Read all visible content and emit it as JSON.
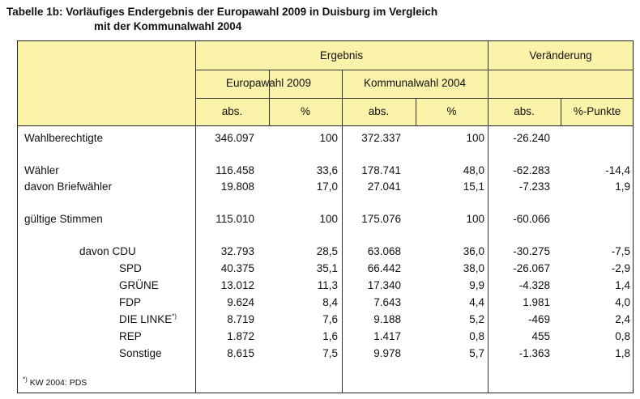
{
  "title": {
    "line1": "Tabelle 1b: Vorläufiges Endergebnis der Europawahl 2009 in Duisburg im Vergleich",
    "line2": "mit der Kommunalwahl 2004"
  },
  "headers": {
    "ergebnis": "Ergebnis",
    "veraenderung": "Veränderung",
    "europawahl": "Europawahl 2009",
    "kommunalwahl": "Kommunalwahl 2004",
    "abs": "abs.",
    "pct": "%",
    "pct_punkte": "%-Punkte"
  },
  "rows": [
    {
      "label": "Wahlberechtigte",
      "ew_abs": "346.097",
      "ew_pct": "100",
      "kw_abs": "372.337",
      "kw_pct": "100",
      "v_abs": "-26.240",
      "v_pp": ""
    },
    {
      "label": "Wähler",
      "ew_abs": "116.458",
      "ew_pct": "33,6",
      "kw_abs": "178.741",
      "kw_pct": "48,0",
      "v_abs": "-62.283",
      "v_pp": "-14,4"
    },
    {
      "label": "davon Briefwähler",
      "ew_abs": "19.808",
      "ew_pct": "17,0",
      "kw_abs": "27.041",
      "kw_pct": "15,1",
      "v_abs": "-7.233",
      "v_pp": "1,9"
    },
    {
      "label": "gültige Stimmen",
      "ew_abs": "115.010",
      "ew_pct": "100",
      "kw_abs": "175.076",
      "kw_pct": "100",
      "v_abs": "-60.066",
      "v_pp": ""
    },
    {
      "label": "davon CDU",
      "ew_abs": "32.793",
      "ew_pct": "28,5",
      "kw_abs": "63.068",
      "kw_pct": "36,0",
      "v_abs": "-30.275",
      "v_pp": "-7,5"
    },
    {
      "label": "SPD",
      "ew_abs": "40.375",
      "ew_pct": "35,1",
      "kw_abs": "66.442",
      "kw_pct": "38,0",
      "v_abs": "-26.067",
      "v_pp": "-2,9"
    },
    {
      "label": "GRÜNE",
      "ew_abs": "13.012",
      "ew_pct": "11,3",
      "kw_abs": "17.340",
      "kw_pct": "9,9",
      "v_abs": "-4.328",
      "v_pp": "1,4"
    },
    {
      "label": "FDP",
      "ew_abs": "9.624",
      "ew_pct": "8,4",
      "kw_abs": "7.643",
      "kw_pct": "4,4",
      "v_abs": "1.981",
      "v_pp": "4,0"
    },
    {
      "label": "DIE LINKE",
      "sup": "*)",
      "ew_abs": "8.719",
      "ew_pct": "7,6",
      "kw_abs": "9.188",
      "kw_pct": "5,2",
      "v_abs": "-469",
      "v_pp": "2,4"
    },
    {
      "label": "REP",
      "ew_abs": "1.872",
      "ew_pct": "1,6",
      "kw_abs": "1.417",
      "kw_pct": "0,8",
      "v_abs": "455",
      "v_pp": "0,8"
    },
    {
      "label": "Sonstige",
      "ew_abs": "8.615",
      "ew_pct": "7,5",
      "kw_abs": "9.978",
      "kw_pct": "5,7",
      "v_abs": "-1.363",
      "v_pp": "1,8"
    }
  ],
  "footnote": {
    "mark": "*)",
    "text": " KW 2004: PDS"
  }
}
